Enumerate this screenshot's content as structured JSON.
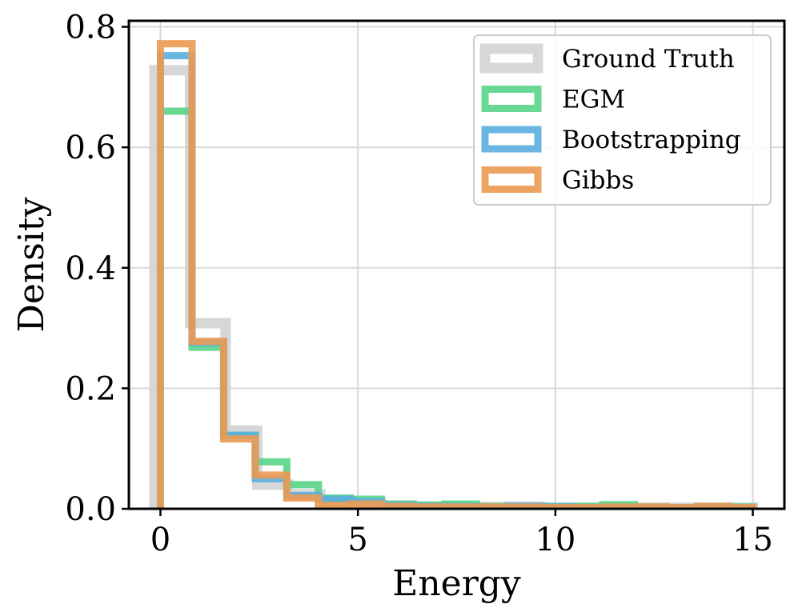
{
  "chart_data": {
    "type": "histogram",
    "xlabel": "Energy",
    "ylabel": "Density",
    "xlim": [
      -0.8,
      15.8
    ],
    "ylim": [
      0,
      0.81
    ],
    "grid": true,
    "legend_position": "top-right",
    "xticks": [
      0,
      5,
      10,
      15
    ],
    "xtick_labels": [
      "0",
      "5",
      "10",
      "15"
    ],
    "yticks": [
      0.0,
      0.2,
      0.4,
      0.6,
      0.8
    ],
    "ytick_labels": [
      "0.0",
      "0.2",
      "0.4",
      "0.6",
      "0.8"
    ],
    "series": [
      {
        "name": "Ground Truth",
        "color": "#d3d3d3",
        "linewidth": 13,
        "opacity": 0.9,
        "edges": [
          -0.15,
          0.75,
          1.65,
          2.45,
          3.25,
          4.05,
          4.85,
          5.65,
          6.45,
          7.25,
          8.05,
          8.85,
          9.65,
          10.45,
          11.25,
          12.05,
          12.85,
          13.65,
          14.45,
          15.0
        ],
        "values": [
          0.728,
          0.308,
          0.13,
          0.04,
          0.024,
          0.012,
          0.006,
          0.004,
          0.004,
          0.003,
          0.003,
          0.003,
          0.002,
          0.002,
          0.002,
          0.002,
          0.002,
          0.002,
          0.002
        ]
      },
      {
        "name": "EGM",
        "color": "#5ad48a",
        "linewidth": 9,
        "opacity": 0.9,
        "edges": [
          0.0,
          0.8,
          1.6,
          2.4,
          3.2,
          4.0,
          4.8,
          5.6,
          6.4,
          7.2,
          8.0,
          8.8,
          9.6,
          10.4,
          11.2,
          12.0,
          12.8,
          13.6,
          14.4,
          15.0
        ],
        "values": [
          0.66,
          0.268,
          0.122,
          0.078,
          0.04,
          0.018,
          0.016,
          0.008,
          0.006,
          0.008,
          0.004,
          0.004,
          0.004,
          0.004,
          0.007,
          0.003,
          0.002,
          0.004,
          0.003
        ]
      },
      {
        "name": "Bootstrapping",
        "color": "#5aaee0",
        "linewidth": 9,
        "opacity": 0.9,
        "edges": [
          0.0,
          0.8,
          1.6,
          2.4,
          3.2,
          4.0,
          4.8,
          5.6,
          6.4,
          7.2,
          8.0,
          8.8,
          9.6,
          10.4,
          11.2,
          12.0,
          12.8,
          13.6,
          14.4,
          15.0
        ],
        "values": [
          0.752,
          0.276,
          0.122,
          0.05,
          0.022,
          0.016,
          0.012,
          0.006,
          0.004,
          0.004,
          0.003,
          0.005,
          0.003,
          0.002,
          0.002,
          0.002,
          0.002,
          0.002,
          0.002
        ]
      },
      {
        "name": "Gibbs",
        "color": "#eb9a52",
        "linewidth": 9,
        "opacity": 0.9,
        "edges": [
          0.0,
          0.8,
          1.6,
          2.4,
          3.2,
          4.0,
          4.8,
          5.6,
          6.4,
          7.2,
          8.0,
          8.8,
          9.6,
          10.4,
          11.2,
          12.0,
          12.8,
          13.6,
          14.4,
          15.0
        ],
        "values": [
          0.772,
          0.278,
          0.116,
          0.056,
          0.018,
          0.006,
          0.008,
          0.004,
          0.003,
          0.003,
          0.003,
          0.003,
          0.002,
          0.002,
          0.003,
          0.003,
          0.002,
          0.004,
          0.002
        ]
      }
    ]
  }
}
